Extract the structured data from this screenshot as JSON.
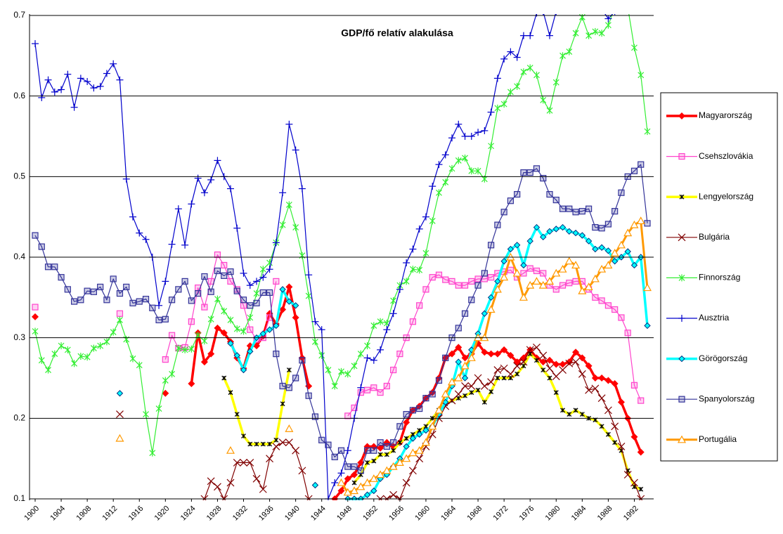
{
  "chart_data": {
    "type": "line",
    "title": "GDP/fő relatív alakulása",
    "x": [
      1900,
      1901,
      1902,
      1903,
      1904,
      1905,
      1906,
      1907,
      1908,
      1909,
      1910,
      1911,
      1912,
      1913,
      1914,
      1915,
      1916,
      1917,
      1918,
      1919,
      1920,
      1921,
      1922,
      1923,
      1924,
      1925,
      1926,
      1927,
      1928,
      1929,
      1930,
      1931,
      1932,
      1933,
      1934,
      1935,
      1936,
      1937,
      1938,
      1939,
      1940,
      1941,
      1942,
      1943,
      1944,
      1945,
      1946,
      1947,
      1948,
      1949,
      1950,
      1951,
      1952,
      1953,
      1954,
      1955,
      1956,
      1957,
      1958,
      1959,
      1960,
      1961,
      1962,
      1963,
      1964,
      1965,
      1966,
      1967,
      1968,
      1969,
      1970,
      1971,
      1972,
      1973,
      1974,
      1975,
      1976,
      1977,
      1978,
      1979,
      1980,
      1981,
      1982,
      1983,
      1984,
      1985,
      1986,
      1987,
      1988,
      1989,
      1990,
      1991,
      1992,
      1993,
      1994
    ],
    "xlim": [
      1900,
      1994
    ],
    "xticks": [
      1900,
      1904,
      1908,
      1912,
      1916,
      1920,
      1924,
      1928,
      1932,
      1936,
      1940,
      1944,
      1948,
      1952,
      1956,
      1960,
      1964,
      1968,
      1972,
      1976,
      1980,
      1984,
      1988,
      1992
    ],
    "ylim": [
      0.1,
      0.7
    ],
    "yticks": [
      0.1,
      0.2,
      0.3,
      0.4,
      0.5,
      0.6,
      0.7
    ],
    "grid": true,
    "legend": "right",
    "series": [
      {
        "name": "Magyarország",
        "color": "#ff0000",
        "marker": "diamond",
        "values": [
          0.326,
          null,
          null,
          null,
          null,
          null,
          null,
          null,
          null,
          null,
          null,
          null,
          null,
          null,
          null,
          null,
          null,
          null,
          null,
          null,
          0.231,
          null,
          null,
          null,
          0.243,
          0.306,
          0.27,
          0.28,
          0.312,
          0.306,
          0.295,
          0.275,
          0.262,
          0.29,
          0.29,
          0.302,
          0.33,
          0.317,
          0.335,
          0.363,
          0.325,
          0.275,
          0.24,
          null,
          null,
          null,
          0.1,
          0.11,
          0.125,
          0.13,
          0.145,
          0.165,
          0.165,
          0.163,
          0.17,
          0.165,
          0.17,
          0.195,
          0.21,
          0.215,
          0.225,
          0.232,
          0.25,
          0.275,
          0.28,
          0.288,
          0.275,
          0.28,
          0.293,
          0.282,
          0.28,
          0.28,
          0.285,
          0.278,
          0.27,
          0.275,
          0.285,
          0.275,
          0.27,
          0.272,
          0.267,
          0.267,
          0.27,
          0.282,
          0.275,
          0.265,
          0.25,
          0.25,
          0.247,
          0.243,
          0.22,
          0.2,
          0.177,
          0.158,
          null
        ]
      },
      {
        "name": "Csehszlovákia",
        "color": "#ff44cc",
        "marker": "square",
        "values": [
          0.338,
          null,
          null,
          null,
          null,
          null,
          null,
          null,
          null,
          null,
          null,
          null,
          null,
          0.33,
          null,
          null,
          null,
          null,
          null,
          null,
          0.273,
          0.303,
          0.287,
          0.288,
          0.32,
          0.362,
          0.338,
          0.37,
          0.403,
          0.39,
          0.37,
          0.36,
          0.34,
          0.31,
          0.298,
          0.3,
          0.325,
          0.37,
          null,
          null,
          null,
          null,
          null,
          null,
          null,
          null,
          null,
          null,
          0.203,
          0.213,
          0.232,
          0.235,
          0.238,
          0.232,
          0.24,
          0.26,
          0.28,
          0.3,
          0.32,
          0.34,
          0.36,
          0.375,
          0.378,
          0.372,
          0.37,
          0.365,
          0.365,
          0.37,
          0.373,
          0.373,
          0.375,
          0.38,
          0.382,
          0.384,
          0.375,
          0.38,
          0.386,
          0.383,
          0.38,
          0.365,
          0.36,
          0.365,
          0.368,
          0.37,
          0.37,
          0.36,
          0.35,
          0.346,
          0.34,
          0.335,
          0.325,
          0.306,
          0.241,
          0.222,
          null
        ]
      },
      {
        "name": "Lengyelország",
        "color": "#ffff00",
        "marker": "asterisk",
        "values": [
          null,
          null,
          null,
          null,
          null,
          null,
          null,
          null,
          null,
          null,
          null,
          null,
          null,
          null,
          null,
          null,
          null,
          null,
          null,
          null,
          null,
          null,
          null,
          null,
          null,
          null,
          null,
          null,
          null,
          0.25,
          0.232,
          0.205,
          0.178,
          0.168,
          0.168,
          0.168,
          0.168,
          0.173,
          0.218,
          0.26,
          null,
          null,
          null,
          null,
          null,
          null,
          null,
          null,
          null,
          0.12,
          0.13,
          0.145,
          0.147,
          0.155,
          0.155,
          0.16,
          0.17,
          0.175,
          0.18,
          0.185,
          0.19,
          0.2,
          0.21,
          0.218,
          0.222,
          0.225,
          0.228,
          0.232,
          0.235,
          0.22,
          0.233,
          0.25,
          0.25,
          0.25,
          0.255,
          0.265,
          0.28,
          0.272,
          0.26,
          0.25,
          0.232,
          0.21,
          0.205,
          0.21,
          0.205,
          0.2,
          0.198,
          0.19,
          0.18,
          0.17,
          0.16,
          0.135,
          0.115,
          0.112,
          null
        ]
      },
      {
        "name": "Bulgária",
        "color": "#800000",
        "marker": "x",
        "values": [
          null,
          null,
          null,
          null,
          null,
          null,
          null,
          null,
          null,
          null,
          null,
          null,
          null,
          0.205,
          null,
          null,
          null,
          null,
          null,
          null,
          null,
          null,
          null,
          null,
          null,
          null,
          0.1,
          0.122,
          0.115,
          0.1,
          0.12,
          0.145,
          0.145,
          0.145,
          0.125,
          0.112,
          0.15,
          0.165,
          0.17,
          0.17,
          0.16,
          0.135,
          0.1,
          null,
          null,
          null,
          null,
          null,
          null,
          null,
          null,
          null,
          null,
          0.1,
          0.1,
          0.105,
          0.1,
          0.12,
          0.135,
          0.15,
          0.165,
          0.18,
          0.2,
          0.215,
          0.222,
          0.23,
          0.24,
          0.24,
          0.25,
          0.24,
          0.245,
          0.26,
          0.262,
          0.255,
          0.265,
          0.27,
          0.285,
          0.288,
          0.278,
          0.262,
          0.252,
          0.26,
          0.268,
          0.27,
          0.255,
          0.235,
          0.237,
          0.225,
          0.21,
          0.19,
          0.165,
          0.13,
          0.12,
          0.1,
          null
        ]
      },
      {
        "name": "Finnország",
        "color": "#33ee33",
        "marker": "star",
        "values": [
          0.308,
          0.272,
          0.26,
          0.28,
          0.29,
          0.285,
          0.268,
          0.277,
          0.276,
          0.287,
          0.29,
          0.295,
          0.307,
          0.322,
          0.298,
          0.274,
          0.266,
          0.205,
          0.157,
          0.212,
          0.247,
          0.255,
          0.287,
          0.285,
          0.286,
          0.303,
          0.296,
          0.323,
          0.348,
          0.333,
          0.322,
          0.311,
          0.308,
          0.325,
          0.355,
          0.385,
          0.393,
          0.418,
          0.44,
          0.465,
          0.437,
          0.402,
          0.352,
          0.295,
          0.278,
          0.26,
          0.24,
          0.258,
          0.255,
          0.265,
          0.28,
          0.29,
          0.315,
          0.32,
          0.318,
          0.346,
          0.365,
          0.37,
          0.385,
          0.384,
          0.405,
          0.445,
          0.48,
          0.493,
          0.51,
          0.52,
          0.523,
          0.507,
          0.507,
          0.497,
          0.538,
          0.585,
          0.59,
          0.605,
          0.612,
          0.63,
          0.635,
          0.626,
          0.595,
          0.582,
          0.617,
          0.65,
          0.655,
          0.678,
          0.698,
          0.675,
          0.68,
          0.678,
          0.688,
          0.71,
          0.73,
          0.71,
          0.66,
          0.626,
          0.556
        ]
      },
      {
        "name": "Ausztria",
        "color": "#0000cc",
        "marker": "plus",
        "values": [
          0.665,
          0.598,
          0.62,
          0.605,
          0.608,
          0.627,
          0.586,
          0.622,
          0.618,
          0.61,
          0.612,
          0.628,
          0.64,
          0.62,
          0.497,
          0.45,
          0.43,
          0.422,
          0.4,
          0.34,
          0.37,
          0.416,
          0.46,
          0.415,
          0.466,
          0.498,
          0.48,
          0.496,
          0.52,
          0.5,
          0.485,
          0.436,
          0.38,
          0.365,
          0.37,
          0.375,
          0.385,
          0.418,
          0.48,
          0.565,
          0.533,
          0.485,
          0.378,
          0.32,
          0.31,
          0.1,
          0.12,
          0.132,
          0.16,
          0.2,
          0.238,
          0.275,
          0.272,
          0.285,
          0.31,
          0.33,
          0.36,
          0.393,
          0.41,
          0.435,
          0.45,
          0.488,
          0.515,
          0.527,
          0.548,
          0.565,
          0.55,
          0.55,
          0.555,
          0.557,
          0.58,
          0.622,
          0.646,
          0.655,
          0.648,
          0.675,
          0.675,
          0.703,
          0.705,
          0.675,
          0.705,
          0.73,
          0.74,
          0.75,
          0.75,
          0.74,
          0.72,
          0.708,
          0.696,
          0.705,
          0.72,
          0.73,
          0.74,
          0.745,
          0.75
        ]
      },
      {
        "name": "Görögország",
        "color": "#00ffff",
        "marker": "diamond-outline",
        "values": [
          null,
          null,
          null,
          null,
          null,
          null,
          null,
          null,
          null,
          null,
          null,
          null,
          null,
          0.231,
          null,
          null,
          null,
          null,
          null,
          null,
          null,
          null,
          null,
          null,
          null,
          null,
          null,
          null,
          null,
          null,
          0.293,
          0.278,
          0.26,
          0.283,
          0.3,
          0.305,
          0.31,
          0.315,
          0.36,
          0.345,
          0.34,
          null,
          null,
          0.117,
          null,
          null,
          null,
          null,
          0.1,
          0.1,
          0.1,
          0.105,
          0.11,
          0.125,
          0.13,
          0.14,
          0.15,
          0.165,
          0.175,
          0.18,
          0.185,
          0.19,
          0.205,
          0.22,
          0.24,
          0.27,
          0.25,
          0.285,
          0.305,
          0.33,
          0.35,
          0.37,
          0.395,
          0.41,
          0.415,
          0.39,
          0.42,
          0.437,
          0.425,
          0.432,
          0.435,
          0.437,
          0.432,
          0.43,
          0.427,
          0.42,
          0.41,
          0.412,
          0.408,
          0.395,
          0.4,
          0.407,
          0.39,
          0.4,
          0.315
        ]
      },
      {
        "name": "Spanyolország",
        "color": "#333399",
        "marker": "square",
        "values": [
          0.427,
          0.413,
          0.388,
          0.388,
          0.375,
          0.36,
          0.345,
          0.347,
          0.358,
          0.357,
          0.363,
          0.347,
          0.373,
          0.355,
          0.363,
          0.343,
          0.345,
          0.348,
          0.337,
          0.322,
          0.323,
          0.347,
          0.36,
          0.37,
          0.346,
          0.355,
          0.376,
          0.357,
          0.383,
          0.377,
          0.382,
          0.358,
          0.347,
          0.34,
          0.343,
          0.356,
          0.356,
          0.28,
          0.24,
          0.238,
          0.25,
          0.272,
          0.228,
          0.202,
          0.173,
          0.167,
          0.152,
          0.16,
          0.14,
          0.14,
          0.135,
          0.16,
          0.16,
          0.17,
          0.165,
          0.17,
          0.19,
          0.205,
          0.21,
          0.212,
          0.225,
          0.23,
          0.247,
          0.275,
          0.3,
          0.312,
          0.33,
          0.347,
          0.365,
          0.38,
          0.415,
          0.44,
          0.456,
          0.47,
          0.478,
          0.505,
          0.505,
          0.51,
          0.498,
          0.478,
          0.471,
          0.46,
          0.46,
          0.456,
          0.457,
          0.46,
          0.437,
          0.436,
          0.441,
          0.457,
          0.48,
          0.5,
          0.507,
          0.515,
          0.442
        ]
      },
      {
        "name": "Portugália",
        "color": "#ff9900",
        "marker": "triangle",
        "values": [
          null,
          null,
          null,
          null,
          null,
          null,
          null,
          null,
          null,
          null,
          null,
          null,
          null,
          0.175,
          null,
          null,
          null,
          null,
          null,
          null,
          null,
          null,
          null,
          null,
          null,
          null,
          null,
          null,
          null,
          null,
          0.16,
          null,
          null,
          null,
          null,
          null,
          null,
          null,
          null,
          0.187,
          null,
          null,
          null,
          null,
          null,
          null,
          null,
          0.12,
          0.108,
          0.11,
          0.115,
          0.12,
          0.125,
          0.13,
          0.135,
          0.14,
          0.145,
          0.15,
          0.157,
          0.16,
          0.17,
          0.19,
          0.21,
          0.23,
          0.245,
          0.25,
          0.265,
          0.275,
          0.3,
          0.3,
          0.335,
          0.36,
          0.375,
          0.4,
          0.38,
          0.35,
          0.365,
          0.37,
          0.365,
          0.37,
          0.38,
          0.385,
          0.395,
          0.39,
          0.358,
          0.363,
          0.373,
          0.385,
          0.39,
          0.405,
          0.415,
          0.43,
          0.44,
          0.445,
          0.362
        ]
      }
    ]
  }
}
